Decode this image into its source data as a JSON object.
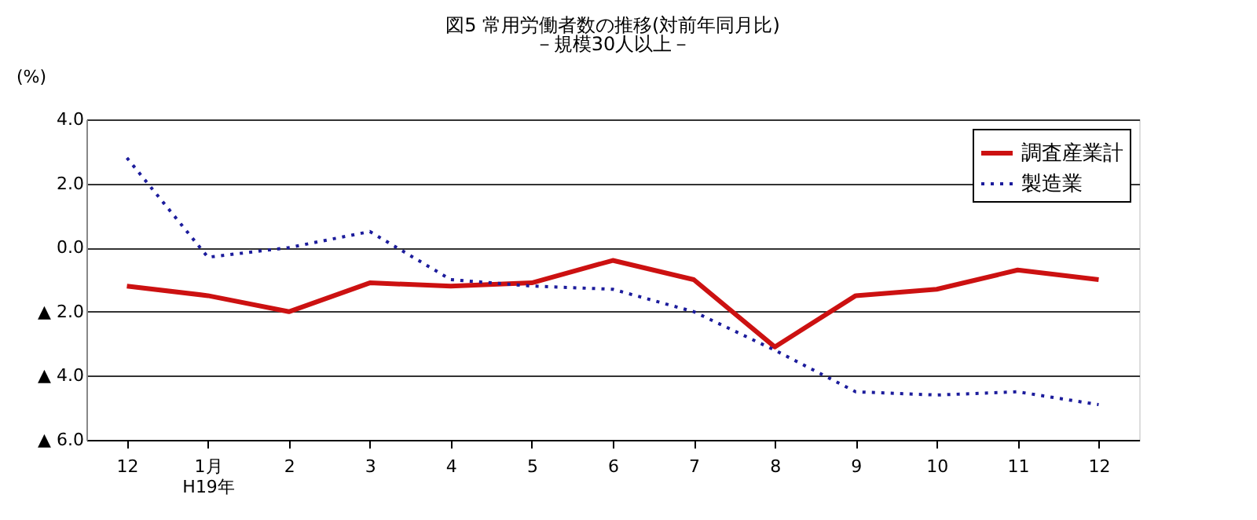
{
  "chart_data": {
    "type": "line",
    "title": "図5 常用労働者数の推移(対前年同月比)",
    "subtitle": "－規模30人以上－",
    "ylabel": "(%)",
    "categories": [
      "12",
      "1月\nH19年",
      "2",
      "3",
      "4",
      "5",
      "6",
      "7",
      "8",
      "9",
      "10",
      "11",
      "12"
    ],
    "series": [
      {
        "name": "調査産業計",
        "color": "#cc1111",
        "line_style": "solid",
        "values": [
          -1.2,
          -1.5,
          -2.0,
          -1.1,
          -1.2,
          -1.1,
          -0.4,
          -1.0,
          -3.1,
          -1.5,
          -1.3,
          -0.7,
          -1.0
        ]
      },
      {
        "name": "製造業",
        "color": "#1c1c9c",
        "line_style": "dotted",
        "values": [
          2.8,
          -0.3,
          0.0,
          0.5,
          -1.0,
          -1.2,
          -1.3,
          -2.0,
          -3.2,
          -4.5,
          -4.6,
          -4.5,
          -4.9
        ]
      }
    ],
    "ylim": [
      -6,
      4
    ],
    "yticks": [
      {
        "value": 4,
        "label": "4.0"
      },
      {
        "value": 2,
        "label": "2.0"
      },
      {
        "value": 0,
        "label": "0.0"
      },
      {
        "value": -2,
        "label": "▲ 2.0"
      },
      {
        "value": -4,
        "label": "▲ 4.0"
      },
      {
        "value": -6,
        "label": "▲ 6.0"
      }
    ],
    "grid": "y",
    "legend": "top right",
    "marker": "none"
  }
}
